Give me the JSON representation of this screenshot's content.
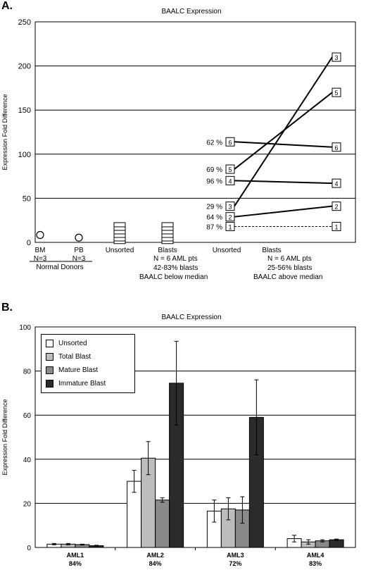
{
  "panels": [
    {
      "label": "A.",
      "title": "BAALC Expression"
    },
    {
      "label": "B.",
      "title": "BAALC Expression"
    }
  ],
  "chart_data": [
    {
      "type": "scatter",
      "title": "BAALC Expression",
      "ylabel": "Expression Fold Difference",
      "ylim": [
        0,
        250
      ],
      "yticks": [
        0,
        50,
        100,
        150,
        200,
        250
      ],
      "grid": true,
      "x_labels": [
        {
          "line1": "BM",
          "line2": "N=3"
        },
        {
          "line1": "PB",
          "line2": "N=3"
        },
        {
          "line1": "Unsorted",
          "line2": ""
        },
        {
          "line1": "Blasts",
          "line2": ""
        },
        {
          "line1": "Unsorted",
          "line2": ""
        },
        {
          "line1": "Blasts",
          "line2": ""
        }
      ],
      "group_labels": [
        {
          "lines": [
            "Normal Donors"
          ],
          "underline": true
        },
        {
          "lines": [
            "N = 6 AML pts",
            "42-83% blasts",
            "BAALC below median"
          ],
          "underline": false
        },
        {
          "lines": [
            "N = 6 AML pts",
            "25-56% blasts",
            "BAALC above median"
          ],
          "underline": false
        }
      ],
      "normal_donors": [
        {
          "group": "BM",
          "value": 6
        },
        {
          "group": "PB",
          "value": 3
        }
      ],
      "below_median": {
        "unsorted": [
          1,
          4,
          8,
          12,
          16,
          20
        ],
        "blasts": [
          1,
          4,
          8,
          12,
          16,
          20
        ]
      },
      "patients": [
        {
          "id": "1",
          "pct": "87 %",
          "unsorted": 18,
          "blasts": 18,
          "dashed": true
        },
        {
          "id": "2",
          "pct": "64 %",
          "unsorted": 29,
          "blasts": 41,
          "dashed": false
        },
        {
          "id": "3",
          "pct": "29 %",
          "unsorted": 41,
          "blasts": 210,
          "dashed": false
        },
        {
          "id": "4",
          "pct": "96 %",
          "unsorted": 70,
          "blasts": 67,
          "dashed": false
        },
        {
          "id": "5",
          "pct": "69 %",
          "unsorted": 83,
          "blasts": 170,
          "dashed": false
        },
        {
          "id": "6",
          "pct": "62 %",
          "unsorted": 114,
          "blasts": 108,
          "dashed": false
        }
      ]
    },
    {
      "type": "bar",
      "title": "BAALC Expression",
      "ylabel": "Expression Fold Difference",
      "ylim": [
        0,
        100
      ],
      "yticks": [
        0,
        20,
        40,
        60,
        80,
        100
      ],
      "grid": true,
      "legend": "top-left",
      "categories": [
        {
          "name": "AML1",
          "pct": "84%"
        },
        {
          "name": "AML2",
          "pct": "84%"
        },
        {
          "name": "AML3",
          "pct": "72%"
        },
        {
          "name": "AML4",
          "pct": "83%"
        }
      ],
      "series": [
        {
          "name": "Unsorted",
          "color": "#ffffff",
          "values": [
            1.5,
            30,
            16.5,
            4
          ],
          "errors": [
            0.3,
            5,
            5,
            1.5
          ]
        },
        {
          "name": "Total Blast",
          "color": "#bdbdbd",
          "values": [
            1.5,
            40.5,
            17.5,
            2.5
          ],
          "errors": [
            0.3,
            7.5,
            5,
            1
          ]
        },
        {
          "name": "Mature Blast",
          "color": "#8a8a8a",
          "values": [
            1.3,
            21.5,
            17,
            3
          ],
          "errors": [
            0.2,
            1,
            6,
            0.5
          ]
        },
        {
          "name": "Immature Blast",
          "color": "#2b2b2b",
          "values": [
            0.8,
            74.5,
            59,
            3.5
          ],
          "errors": [
            0.2,
            19,
            17,
            0.3
          ]
        }
      ]
    }
  ]
}
